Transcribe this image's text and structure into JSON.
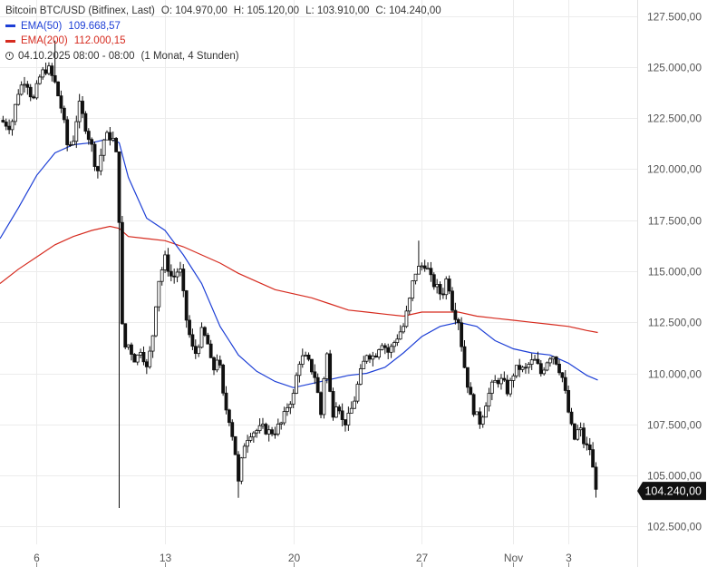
{
  "legend": {
    "instrument": "Bitcoin BTC/USD (Bitfinex, Last)",
    "open": "O: 104.970,00",
    "high": "H: 105.120,00",
    "low": "L: 103.910,00",
    "close": "C: 104.240,00",
    "ema50_label": "EMA(50)",
    "ema50_value": "109.668,57",
    "ema200_label": "EMA(200)",
    "ema200_value": "112.000,15",
    "period": "04.10.2025 08:00 - 08:00",
    "period_extra": "(1 Monat, 4 Stunden)"
  },
  "colors": {
    "candle": "#111111",
    "ema50": "#1d3fd6",
    "ema200": "#d62b1f",
    "grid": "#ececec",
    "axis_text": "#555555",
    "price_tag_bg": "#111111",
    "price_tag_text": "#ffffff"
  },
  "chart_data": {
    "type": "candlestick",
    "interval": "4h",
    "price_axis_side": "right",
    "ylim": [
      101800,
      128200
    ],
    "yticks": [
      102500,
      105000,
      107500,
      110000,
      112500,
      115000,
      117500,
      120000,
      122500,
      125000,
      127500
    ],
    "ytick_labels": [
      "102.500,00",
      "105.000,00",
      "107.500,00",
      "110.000,00",
      "112.500,00",
      "115.000,00",
      "117.500,00",
      "120.000,00",
      "122.500,00",
      "125.000,00",
      "127.500,00"
    ],
    "xticks": [
      {
        "label": "6",
        "day": 6
      },
      {
        "label": "13",
        "day": 13
      },
      {
        "label": "20",
        "day": 20
      },
      {
        "label": "27",
        "day": 27
      },
      {
        "label": "Nov",
        "day": 32
      },
      {
        "label": "3",
        "day": 35
      }
    ],
    "x_range_days": [
      4.0,
      38.75
    ],
    "last_price_label": "104.240,00",
    "last_price": 104240,
    "close_path": [
      [
        4.0,
        122400
      ],
      [
        4.6,
        122100
      ],
      [
        5.0,
        123800
      ],
      [
        5.4,
        124500
      ],
      [
        5.8,
        123300
      ],
      [
        6.2,
        124600
      ],
      [
        6.6,
        125000
      ],
      [
        7.0,
        124200
      ],
      [
        7.4,
        122800
      ],
      [
        7.7,
        121000
      ],
      [
        8.0,
        121500
      ],
      [
        8.3,
        123200
      ],
      [
        8.6,
        122300
      ],
      [
        9.0,
        121100
      ],
      [
        9.3,
        119800
      ],
      [
        9.7,
        121600
      ],
      [
        10.0,
        121600
      ],
      [
        10.3,
        121300
      ],
      [
        10.5,
        117600
      ],
      [
        10.7,
        111200
      ],
      [
        11.0,
        111400
      ],
      [
        11.4,
        110600
      ],
      [
        11.7,
        111300
      ],
      [
        12.0,
        110200
      ],
      [
        12.3,
        111600
      ],
      [
        12.6,
        114400
      ],
      [
        13.0,
        115600
      ],
      [
        13.4,
        114600
      ],
      [
        13.8,
        115200
      ],
      [
        14.2,
        112400
      ],
      [
        14.6,
        110800
      ],
      [
        15.0,
        112000
      ],
      [
        15.3,
        111600
      ],
      [
        15.6,
        110000
      ],
      [
        15.9,
        111000
      ],
      [
        16.2,
        108600
      ],
      [
        16.5,
        107800
      ],
      [
        16.8,
        106400
      ],
      [
        17.0,
        104600
      ],
      [
        17.3,
        106500
      ],
      [
        17.6,
        107100
      ],
      [
        18.0,
        107200
      ],
      [
        18.4,
        107300
      ],
      [
        18.7,
        107100
      ],
      [
        19.0,
        107200
      ],
      [
        19.4,
        107600
      ],
      [
        19.7,
        108500
      ],
      [
        20.0,
        108900
      ],
      [
        20.3,
        110600
      ],
      [
        20.6,
        110800
      ],
      [
        20.9,
        110400
      ],
      [
        21.2,
        109800
      ],
      [
        21.5,
        108000
      ],
      [
        21.8,
        111300
      ],
      [
        22.1,
        107900
      ],
      [
        22.4,
        108800
      ],
      [
        22.7,
        107500
      ],
      [
        23.0,
        107800
      ],
      [
        23.3,
        108600
      ],
      [
        23.6,
        109800
      ],
      [
        24.0,
        111000
      ],
      [
        24.4,
        110800
      ],
      [
        24.8,
        111600
      ],
      [
        25.2,
        111000
      ],
      [
        25.6,
        111700
      ],
      [
        26.0,
        112300
      ],
      [
        26.3,
        113400
      ],
      [
        26.6,
        114900
      ],
      [
        26.9,
        115200
      ],
      [
        27.2,
        115400
      ],
      [
        27.5,
        114600
      ],
      [
        27.8,
        114200
      ],
      [
        28.1,
        113800
      ],
      [
        28.4,
        114800
      ],
      [
        28.7,
        113100
      ],
      [
        29.0,
        112600
      ],
      [
        29.3,
        110500
      ],
      [
        29.6,
        109000
      ],
      [
        29.9,
        108000
      ],
      [
        30.2,
        107600
      ],
      [
        30.5,
        108600
      ],
      [
        30.8,
        109300
      ],
      [
        31.1,
        109700
      ],
      [
        31.4,
        109600
      ],
      [
        31.7,
        109100
      ],
      [
        32.0,
        110000
      ],
      [
        32.3,
        110300
      ],
      [
        32.6,
        110100
      ],
      [
        32.9,
        110500
      ],
      [
        33.2,
        110600
      ],
      [
        33.5,
        110000
      ],
      [
        33.8,
        110600
      ],
      [
        34.1,
        111000
      ],
      [
        34.4,
        110500
      ],
      [
        34.7,
        109700
      ],
      [
        35.0,
        108100
      ],
      [
        35.3,
        106700
      ],
      [
        35.6,
        107400
      ],
      [
        35.9,
        106400
      ],
      [
        36.2,
        106300
      ],
      [
        36.4,
        104800
      ],
      [
        36.6,
        104240
      ]
    ],
    "wick_events": [
      {
        "day": 10.5,
        "low": 103400
      },
      {
        "day": 17.05,
        "low": 103900
      },
      {
        "day": 7.0,
        "high": 126300
      },
      {
        "day": 26.8,
        "high": 116500
      },
      {
        "day": 36.5,
        "low": 103910
      }
    ],
    "ema50": [
      [
        4.0,
        116600
      ],
      [
        5.0,
        118100
      ],
      [
        6.0,
        119700
      ],
      [
        7.0,
        120800
      ],
      [
        8.0,
        121200
      ],
      [
        9.0,
        121300
      ],
      [
        10.0,
        121500
      ],
      [
        10.5,
        121300
      ],
      [
        11.0,
        119600
      ],
      [
        12.0,
        117600
      ],
      [
        13.0,
        117000
      ],
      [
        14.0,
        115800
      ],
      [
        15.0,
        114400
      ],
      [
        16.0,
        112300
      ],
      [
        17.0,
        110900
      ],
      [
        18.0,
        110100
      ],
      [
        19.0,
        109600
      ],
      [
        20.0,
        109300
      ],
      [
        21.0,
        109500
      ],
      [
        22.0,
        109700
      ],
      [
        23.0,
        109900
      ],
      [
        24.0,
        110000
      ],
      [
        25.0,
        110300
      ],
      [
        26.0,
        111000
      ],
      [
        27.0,
        111800
      ],
      [
        28.0,
        112300
      ],
      [
        29.0,
        112500
      ],
      [
        30.0,
        112300
      ],
      [
        31.0,
        111600
      ],
      [
        32.0,
        111200
      ],
      [
        33.0,
        111000
      ],
      [
        34.0,
        110900
      ],
      [
        35.0,
        110500
      ],
      [
        36.0,
        109900
      ],
      [
        36.6,
        109669
      ]
    ],
    "ema200": [
      [
        4.0,
        114400
      ],
      [
        5.0,
        115100
      ],
      [
        6.0,
        115700
      ],
      [
        7.0,
        116300
      ],
      [
        8.0,
        116700
      ],
      [
        9.0,
        117000
      ],
      [
        10.0,
        117200
      ],
      [
        10.5,
        117100
      ],
      [
        11.0,
        116700
      ],
      [
        12.0,
        116600
      ],
      [
        13.0,
        116500
      ],
      [
        14.0,
        116200
      ],
      [
        15.0,
        115800
      ],
      [
        16.0,
        115400
      ],
      [
        17.0,
        114900
      ],
      [
        18.0,
        114500
      ],
      [
        19.0,
        114100
      ],
      [
        20.0,
        113900
      ],
      [
        21.0,
        113700
      ],
      [
        22.0,
        113400
      ],
      [
        23.0,
        113100
      ],
      [
        24.0,
        113000
      ],
      [
        25.0,
        112900
      ],
      [
        26.0,
        112800
      ],
      [
        27.0,
        113000
      ],
      [
        28.0,
        113000
      ],
      [
        29.0,
        113000
      ],
      [
        30.0,
        112800
      ],
      [
        31.0,
        112700
      ],
      [
        32.0,
        112600
      ],
      [
        33.0,
        112500
      ],
      [
        34.0,
        112400
      ],
      [
        35.0,
        112300
      ],
      [
        36.0,
        112100
      ],
      [
        36.6,
        112000
      ]
    ]
  }
}
